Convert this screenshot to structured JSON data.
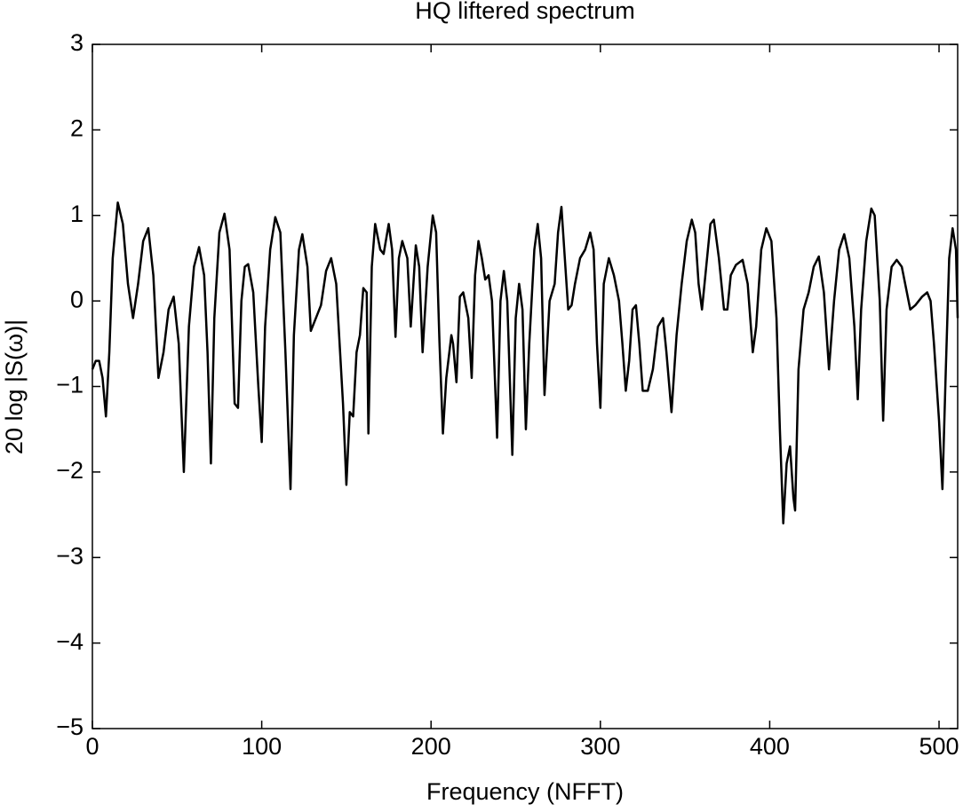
{
  "chart_data": {
    "type": "line",
    "title": "HQ liftered spectrum",
    "x_label": "Frequency (NFFT)",
    "y_label": "20 log |S(ω)|",
    "color": "#000000",
    "x": [
      0,
      2,
      4,
      6,
      8,
      10,
      12,
      15,
      18,
      21,
      24,
      27,
      30,
      33,
      36,
      39,
      42,
      45,
      48,
      51,
      54,
      57,
      60,
      63,
      66,
      68,
      70,
      72,
      75,
      78,
      81,
      84,
      86,
      88,
      90,
      92,
      95,
      98,
      100,
      102,
      105,
      108,
      111,
      114,
      117,
      119,
      122,
      124,
      127,
      129,
      132,
      135,
      138,
      141,
      144,
      146,
      148,
      150,
      152,
      154,
      156,
      158,
      160,
      162,
      163,
      165,
      167,
      170,
      172,
      175,
      177,
      179,
      181,
      183,
      186,
      188,
      191,
      193,
      195,
      198,
      201,
      203,
      205,
      207,
      209,
      212,
      213,
      215,
      217,
      219,
      222,
      224,
      226,
      228,
      230,
      232,
      234,
      236,
      239,
      241,
      243,
      245,
      248,
      250,
      252,
      254,
      256,
      258,
      261,
      263,
      265,
      267,
      270,
      273,
      275,
      277,
      279,
      281,
      283,
      285,
      288,
      291,
      294,
      296,
      298,
      300,
      302,
      305,
      308,
      311,
      313,
      315,
      317,
      319,
      321,
      323,
      325,
      328,
      331,
      334,
      337,
      339,
      342,
      345,
      348,
      351,
      354,
      356,
      358,
      360,
      362,
      365,
      367,
      370,
      373,
      375,
      377,
      380,
      384,
      387,
      390,
      392,
      395,
      398,
      401,
      404,
      406,
      408,
      410,
      412,
      414,
      415,
      417,
      420,
      423,
      426,
      429,
      432,
      435,
      438,
      441,
      444,
      447,
      450,
      452,
      454,
      457,
      460,
      462,
      465,
      467,
      469,
      472,
      475,
      478,
      481,
      483,
      486,
      490,
      493,
      495,
      497,
      500,
      502,
      504,
      506,
      508,
      510,
      511
    ],
    "values": [
      -0.8,
      -0.7,
      -0.7,
      -0.9,
      -1.35,
      -0.6,
      0.5,
      1.15,
      0.9,
      0.2,
      -0.2,
      0.2,
      0.7,
      0.85,
      0.3,
      -0.9,
      -0.6,
      -0.1,
      0.05,
      -0.5,
      -2.0,
      -0.3,
      0.4,
      0.63,
      0.3,
      -0.6,
      -1.9,
      -0.2,
      0.8,
      1.02,
      0.6,
      -1.2,
      -1.25,
      0.0,
      0.4,
      0.43,
      0.1,
      -1.0,
      -1.65,
      -0.3,
      0.6,
      0.98,
      0.8,
      -0.6,
      -2.2,
      -0.4,
      0.6,
      0.78,
      0.4,
      -0.35,
      -0.2,
      -0.05,
      0.35,
      0.5,
      0.2,
      -0.5,
      -1.2,
      -2.15,
      -1.3,
      -1.35,
      -0.6,
      -0.4,
      0.15,
      0.1,
      -1.55,
      0.4,
      0.9,
      0.6,
      0.55,
      0.9,
      0.6,
      -0.42,
      0.5,
      0.7,
      0.5,
      -0.3,
      0.65,
      0.4,
      -0.6,
      0.4,
      1.0,
      0.8,
      -0.5,
      -1.55,
      -0.9,
      -0.4,
      -0.5,
      -0.95,
      0.05,
      0.1,
      -0.2,
      -0.9,
      0.3,
      0.7,
      0.5,
      0.25,
      0.3,
      0.0,
      -1.6,
      0.0,
      0.35,
      0.0,
      -1.8,
      -0.2,
      0.2,
      -0.1,
      -1.5,
      -0.5,
      0.6,
      0.9,
      0.5,
      -1.1,
      0.0,
      0.2,
      0.8,
      1.1,
      0.5,
      -0.1,
      -0.05,
      0.2,
      0.5,
      0.6,
      0.8,
      0.6,
      -0.5,
      -1.25,
      0.2,
      0.5,
      0.3,
      0.0,
      -0.5,
      -1.05,
      -0.7,
      -0.1,
      -0.05,
      -0.5,
      -1.05,
      -1.05,
      -0.8,
      -0.3,
      -0.2,
      -0.6,
      -1.3,
      -0.4,
      0.2,
      0.7,
      0.95,
      0.8,
      0.2,
      -0.1,
      0.3,
      0.9,
      0.95,
      0.5,
      -0.1,
      -0.1,
      0.3,
      0.42,
      0.48,
      0.2,
      -0.6,
      -0.3,
      0.6,
      0.85,
      0.7,
      -0.2,
      -1.5,
      -2.6,
      -1.9,
      -1.7,
      -2.3,
      -2.45,
      -0.8,
      -0.1,
      0.1,
      0.4,
      0.52,
      0.1,
      -0.8,
      0.0,
      0.6,
      0.78,
      0.5,
      -0.3,
      -1.15,
      -0.1,
      0.7,
      1.08,
      1.0,
      0.0,
      -1.4,
      -0.1,
      0.4,
      0.48,
      0.4,
      0.1,
      -0.1,
      -0.05,
      0.05,
      0.1,
      0.0,
      -0.5,
      -1.4,
      -2.2,
      -0.8,
      0.5,
      0.85,
      0.6,
      -0.2
    ],
    "xlim": [
      0,
      511
    ],
    "ylim": [
      -5,
      3
    ],
    "xticks": [
      0,
      100,
      200,
      300,
      400,
      500
    ],
    "yticks": [
      {
        "value": -5,
        "label": "−5"
      },
      {
        "value": -4,
        "label": "−4"
      },
      {
        "value": -3,
        "label": "−3"
      },
      {
        "value": -2,
        "label": "−2"
      },
      {
        "value": -1,
        "label": "−1"
      },
      0,
      1,
      2,
      3
    ],
    "grid": false
  }
}
